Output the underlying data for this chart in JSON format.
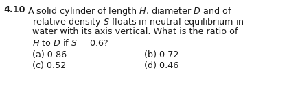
{
  "question_number": "4.10",
  "line1": "A solid cylinder of length $H$, diameter $D$ and of",
  "line2": "relative density $S$ floats in neutral equilibrium in",
  "line3": "water with its axis vertical. What is the ratio of",
  "line4": "$H$ to $D$ if $S$ = 0.6?",
  "opt_a_label": "(a)",
  "opt_a_val": " 0.86",
  "opt_b_label": "(b)",
  "opt_b_val": " 0.72",
  "opt_c_label": "(c)",
  "opt_c_val": " 0.52",
  "opt_d_label": "(d)",
  "opt_d_val": " 0.46",
  "background_color": "#ffffff",
  "text_color": "#1a1a1a",
  "font_size": 9.2,
  "number_font_size": 9.2
}
